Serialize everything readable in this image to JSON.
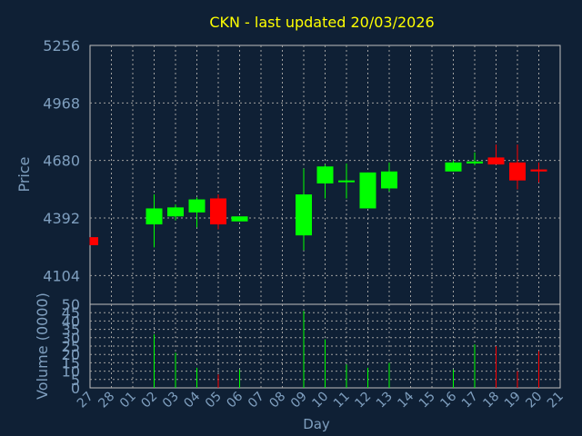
{
  "chart_data": {
    "type": "candlestick",
    "title": "CKN - last updated 20/03/2026",
    "xlabel": "Day",
    "price_axis": {
      "label": "Price",
      "ylim": [
        3960,
        5256
      ],
      "ticks": [
        "5256",
        "4968",
        "4680",
        "4392",
        "4104"
      ]
    },
    "volume_axis": {
      "label": "Volume (0000)",
      "ylim": [
        0,
        50
      ],
      "ticks": [
        "50",
        "45",
        "40",
        "35",
        "30",
        "25",
        "20",
        "15",
        "10",
        "5",
        "0"
      ]
    },
    "x_ticks": [
      "27",
      "28",
      "01",
      "02",
      "03",
      "04",
      "05",
      "06",
      "07",
      "08",
      "09",
      "10",
      "11",
      "12",
      "13",
      "14",
      "15",
      "16",
      "17",
      "18",
      "19",
      "20",
      "21"
    ],
    "grid": true,
    "colors": {
      "background": "#0f2035",
      "plot_border": "#c0c0c0",
      "grid": "#a0a0a0",
      "title": "#ffff00",
      "axis_text": "#7f9fbf",
      "label_text": "#7f9fbf",
      "up": "#00ff00",
      "down": "#ff0000"
    },
    "candles": [
      {
        "day": "27",
        "open": 4296,
        "close": 4256,
        "high": 4296,
        "low": 4256
      },
      {
        "day": "02",
        "open": 4360,
        "close": 4440,
        "high": 4510,
        "low": 4245
      },
      {
        "day": "03",
        "open": 4400,
        "close": 4445,
        "high": 4460,
        "low": 4380
      },
      {
        "day": "04",
        "open": 4420,
        "close": 4485,
        "high": 4495,
        "low": 4345
      },
      {
        "day": "05",
        "open": 4490,
        "close": 4360,
        "high": 4510,
        "low": 4335
      },
      {
        "day": "06",
        "open": 4375,
        "close": 4400,
        "high": 4400,
        "low": 4375
      },
      {
        "day": "09",
        "open": 4305,
        "close": 4510,
        "high": 4640,
        "low": 4230
      },
      {
        "day": "10",
        "open": 4565,
        "close": 4650,
        "high": 4660,
        "low": 4490
      },
      {
        "day": "11",
        "open": 4575,
        "close": 4580,
        "high": 4665,
        "low": 4490
      },
      {
        "day": "12",
        "open": 4440,
        "close": 4620,
        "high": 4620,
        "low": 4440
      },
      {
        "day": "13",
        "open": 4540,
        "close": 4625,
        "high": 4670,
        "low": 4525
      },
      {
        "day": "16",
        "open": 4625,
        "close": 4670,
        "high": 4680,
        "low": 4625
      },
      {
        "day": "17",
        "open": 4665,
        "close": 4675,
        "high": 4720,
        "low": 4655
      },
      {
        "day": "18",
        "open": 4695,
        "close": 4660,
        "high": 4760,
        "low": 4660
      },
      {
        "day": "19",
        "open": 4670,
        "close": 4580,
        "high": 4760,
        "low": 4535
      },
      {
        "day": "20",
        "open": 4635,
        "close": 4625,
        "high": 4670,
        "low": 4570
      }
    ],
    "volume": [
      {
        "day": "27",
        "value": 0,
        "dir": "down"
      },
      {
        "day": "02",
        "value": 32,
        "dir": "up"
      },
      {
        "day": "03",
        "value": 21,
        "dir": "up"
      },
      {
        "day": "04",
        "value": 12,
        "dir": "up"
      },
      {
        "day": "05",
        "value": 8,
        "dir": "down"
      },
      {
        "day": "06",
        "value": 11,
        "dir": "up"
      },
      {
        "day": "09",
        "value": 46,
        "dir": "up"
      },
      {
        "day": "10",
        "value": 29,
        "dir": "up"
      },
      {
        "day": "11",
        "value": 14,
        "dir": "up"
      },
      {
        "day": "12",
        "value": 12,
        "dir": "up"
      },
      {
        "day": "13",
        "value": 15,
        "dir": "up"
      },
      {
        "day": "16",
        "value": 11,
        "dir": "up"
      },
      {
        "day": "17",
        "value": 26,
        "dir": "up"
      },
      {
        "day": "18",
        "value": 25,
        "dir": "down"
      },
      {
        "day": "19",
        "value": 10,
        "dir": "down"
      },
      {
        "day": "20",
        "value": 22,
        "dir": "down"
      }
    ]
  }
}
